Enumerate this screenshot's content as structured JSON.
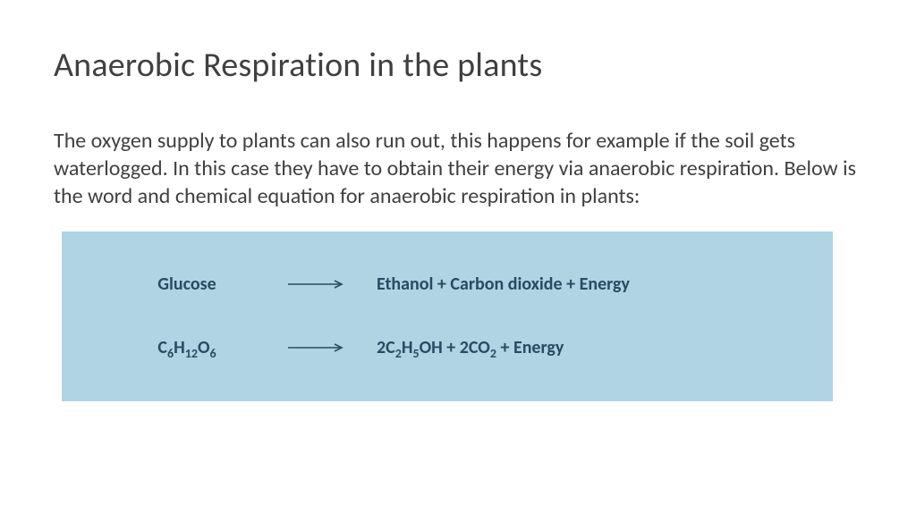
{
  "slide": {
    "title": "Anaerobic Respiration in the plants",
    "paragraph": "The oxygen supply to plants can also run out, this happens for example if the soil gets waterlogged. In this case they have to obtain their energy via anaerobic respiration. Below is the word and chemical equation for anaerobic respiration in plants:",
    "title_color": "#404040",
    "body_color": "#404040",
    "title_fontsize": 38,
    "body_fontsize": 24,
    "background": "#ffffff"
  },
  "equation_box": {
    "background": "#b0d4e3",
    "text_color": "#2b4a63",
    "arrow_color": "#2b4a63",
    "fontsize": 20,
    "word_equation": {
      "left": "Glucose",
      "right": "Ethanol + Carbon dioxide + Energy"
    },
    "chemical_equation": {
      "left_html": "C<sub>6</sub>H<sub>12</sub>O<sub>6</sub>",
      "right_html": "2C<sub>2</sub>H<sub>5</sub>OH + 2CO<sub>2</sub> + Energy"
    }
  }
}
